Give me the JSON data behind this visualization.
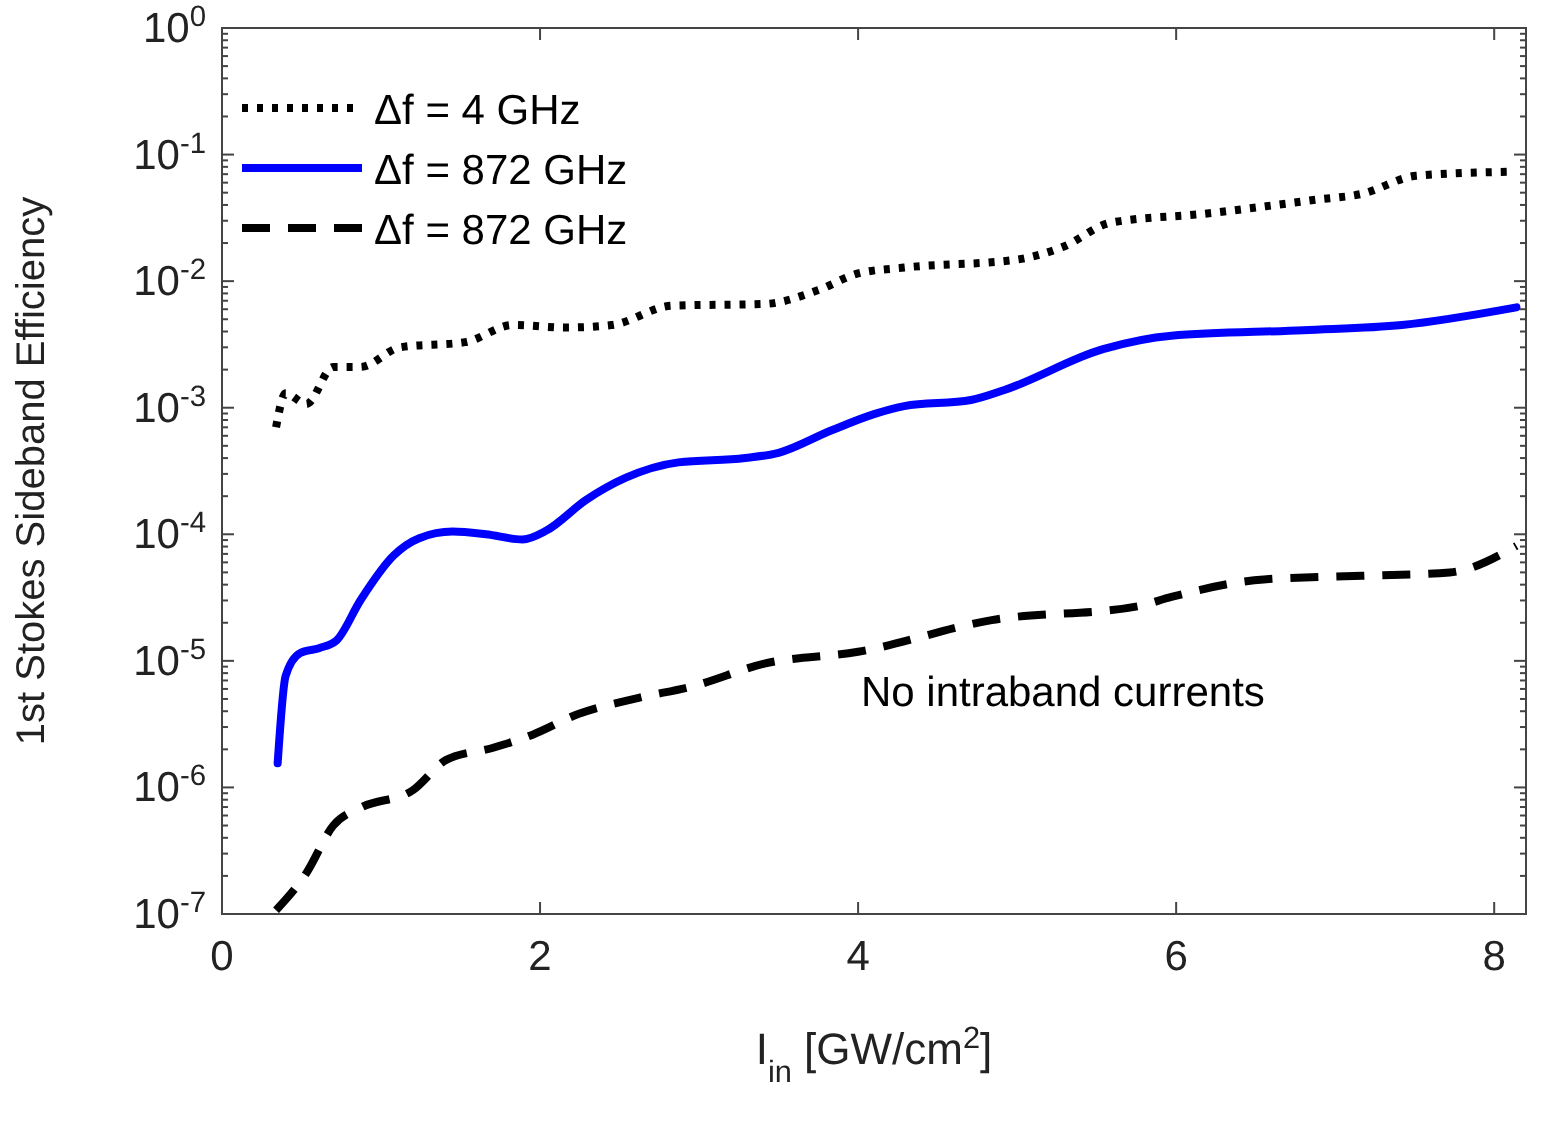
{
  "chart_data": {
    "type": "line",
    "xlabel": "I$_{in}$ [GW/cm$^{2}$]",
    "ylabel": "1st Stokes Sideband Efficiency",
    "log": "y",
    "xlim": [
      0,
      8.2
    ],
    "xticks": [
      0,
      2,
      4,
      6,
      8
    ],
    "ylim": [
      1e-07,
      1
    ],
    "yticks": [
      {
        "value": 1e-07,
        "label": "10$^{-7}$"
      },
      {
        "value": 1e-06,
        "label": "10$^{-6}$"
      },
      {
        "value": 1e-05,
        "label": "10$^{-5}$"
      },
      {
        "value": 0.0001,
        "label": "10$^{-4}$"
      },
      {
        "value": 0.001,
        "label": "10$^{-3}$"
      },
      {
        "value": 0.01,
        "label": "10$^{-2}$"
      },
      {
        "value": 0.1,
        "label": "10$^{-1}$"
      },
      {
        "value": 1,
        "label": "10$^{0}$"
      }
    ],
    "grid": false,
    "legend": "top left",
    "marker": "none",
    "series": [
      {
        "name": "Δf = 4 GHz",
        "color": "#000000",
        "line_style": "dotted",
        "x": [
          0.34,
          0.4,
          0.53,
          0.7,
          0.87,
          1.12,
          1.53,
          1.83,
          2.16,
          2.45,
          2.83,
          3.41,
          3.75,
          4.0,
          4.29,
          5.0,
          5.29,
          5.59,
          6.17,
          6.88,
          7.17,
          7.51,
          8.08
        ],
        "values": [
          0.0007,
          0.0013,
          0.00107,
          0.0021,
          0.0021,
          0.003,
          0.0033,
          0.0045,
          0.0043,
          0.0045,
          0.0064,
          0.0066,
          0.0085,
          0.0115,
          0.0128,
          0.0148,
          0.0187,
          0.029,
          0.034,
          0.044,
          0.049,
          0.068,
          0.073
        ]
      },
      {
        "name": "Δf = 872 GHz",
        "color": "#0000ff",
        "line_style": "solid",
        "x": [
          0.35,
          0.4,
          0.49,
          0.61,
          0.72,
          0.87,
          1.08,
          1.24,
          1.45,
          1.66,
          1.89,
          2.04,
          2.29,
          2.54,
          2.87,
          3.29,
          3.5,
          3.83,
          4.1,
          4.29,
          4.71,
          4.92,
          5.54,
          5.97,
          6.8,
          7.42,
          8.14
        ],
        "values": [
          1.55e-06,
          7.6e-06,
          1.15e-05,
          1.26e-05,
          1.45e-05,
          3e-05,
          6.8e-05,
          9.3e-05,
          0.000105,
          0.0001,
          9.1e-05,
          0.000107,
          0.000187,
          0.00028,
          0.00037,
          0.0004,
          0.00044,
          0.00066,
          0.00089,
          0.00103,
          0.00115,
          0.00138,
          0.0029,
          0.0037,
          0.0041,
          0.0045,
          0.0062
        ]
      },
      {
        "name": "Δf = 872 GHz",
        "color": "#000000",
        "line_style": "dashed",
        "x": [
          0.34,
          0.53,
          0.7,
          0.87,
          1.2,
          1.41,
          1.7,
          1.95,
          2.24,
          2.62,
          2.96,
          3.41,
          4.0,
          4.84,
          5.76,
          5.97,
          6.55,
          7.17,
          7.72,
          8.14
        ],
        "values": [
          1.07e-07,
          2.1e-07,
          5e-07,
          6.9e-07,
          9.5e-07,
          1.65e-06,
          2.05e-06,
          2.6e-06,
          3.8e-06,
          5.1e-06,
          6.3e-06,
          9.5e-06,
          1.18e-05,
          2.1e-05,
          2.7e-05,
          3.2e-05,
          4.4e-05,
          4.7e-05,
          5e-05,
          8.1e-05
        ]
      }
    ],
    "annotations": [
      "No intraband currents"
    ]
  }
}
